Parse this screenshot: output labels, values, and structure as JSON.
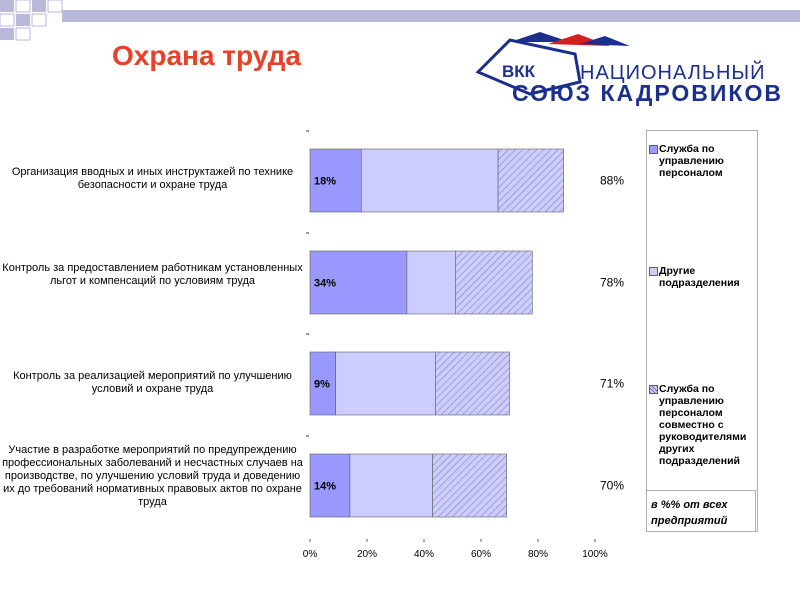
{
  "header": {
    "title": "Охрана труда",
    "logo_abbr": "ВКК",
    "logo_line1": "НАЦИОНАЛЬНЫЙ",
    "logo_line2": "СОЮЗ КАДРОВИКОВ"
  },
  "colors": {
    "accent_title": "#e8412a",
    "series1": "#9999ff",
    "series2": "#ccccff",
    "series3": "#ccccff",
    "logo_blue": "#1c2f8c",
    "logo_red": "#d22020"
  },
  "chart_data": {
    "type": "bar",
    "orientation": "horizontal",
    "stacked": true,
    "categories": [
      "Организация вводных и иных инструктажей по технике безопасности и охране труда",
      "Контроль за предоставлением работникам установленных льгот и компенсаций по условиям труда",
      "Контроль за реализацией мероприятий по улучшению условий и охране труда",
      "Участие в разработке мероприятий по предупреждению профессиональных заболеваний и несчастных случаев на производстве, по улучшению условий труда и доведению их до требований нормативных правовых актов по охране труда"
    ],
    "series": [
      {
        "name": "Служба по управлению персоналом",
        "values": [
          18,
          34,
          9,
          14
        ],
        "labels": [
          "18%",
          "34%",
          "9%",
          "14%"
        ]
      },
      {
        "name": "Другие подразделения",
        "values": [
          48,
          17,
          35,
          29
        ]
      },
      {
        "name": "Служба по управлению персоналом совместно с руководителями других подразделений",
        "values": [
          23,
          27,
          26,
          26
        ]
      }
    ],
    "totals": [
      "88%",
      "78%",
      "71%",
      "70%"
    ],
    "x_ticks": [
      "0%",
      "20%",
      "40%",
      "60%",
      "80%",
      "100%"
    ],
    "xlim": [
      0,
      100
    ],
    "legend": "right",
    "note": "в %% от всех предприятий"
  }
}
